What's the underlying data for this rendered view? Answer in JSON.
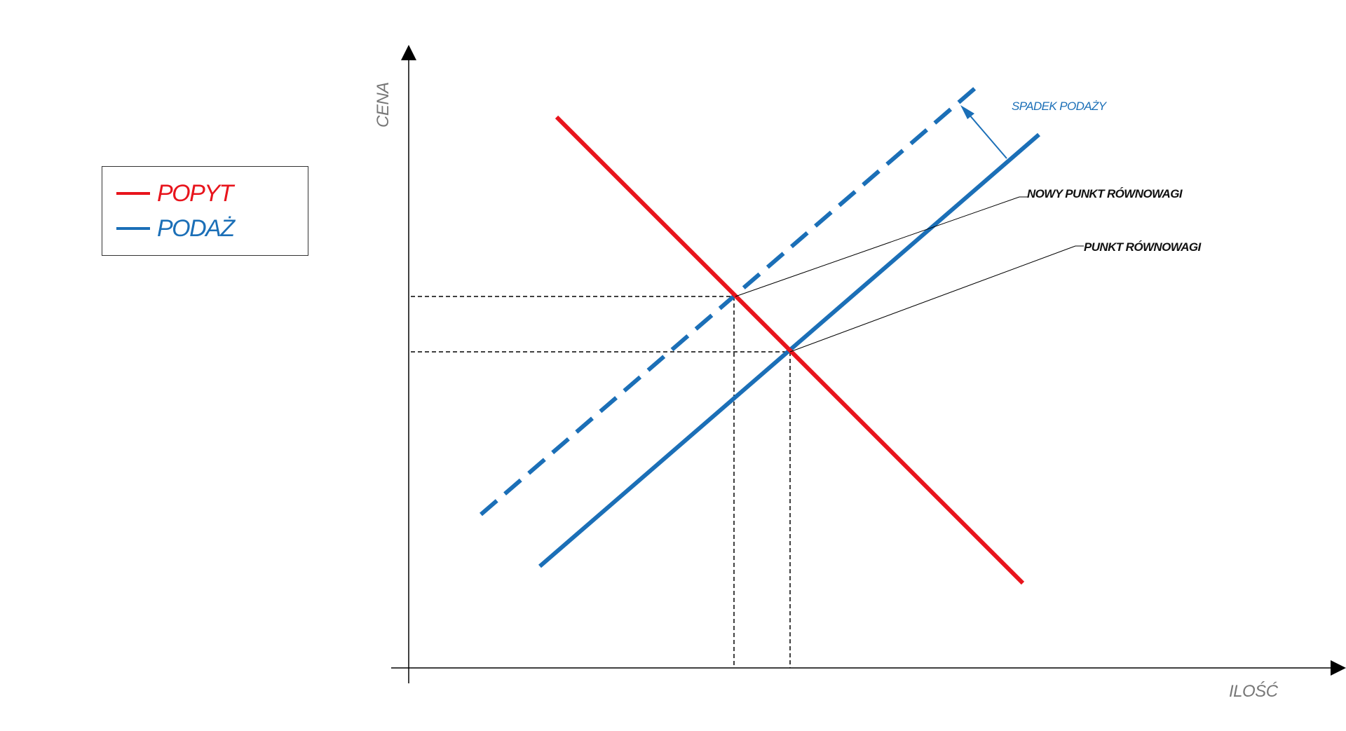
{
  "colors": {
    "demand": "#e8141c",
    "supply": "#1b6fb7",
    "axis": "#000000",
    "axis_label": "#777777",
    "guide": "#000000"
  },
  "legend": {
    "demand_label": "POPYT",
    "supply_label": "PODAŻ"
  },
  "axes": {
    "y_label": "CENA",
    "x_label": "ILOŚĆ"
  },
  "annotations": {
    "shift": "SPADEK PODAŻY",
    "new_equilibrium": "NOWY PUNKT RÓWNOWAGI",
    "equilibrium": "PUNKT RÓWNOWAGI"
  },
  "curves": {
    "demand": {
      "style": "solid"
    },
    "supply": {
      "style": "solid"
    },
    "supply_shifted": {
      "style": "dashed"
    }
  }
}
